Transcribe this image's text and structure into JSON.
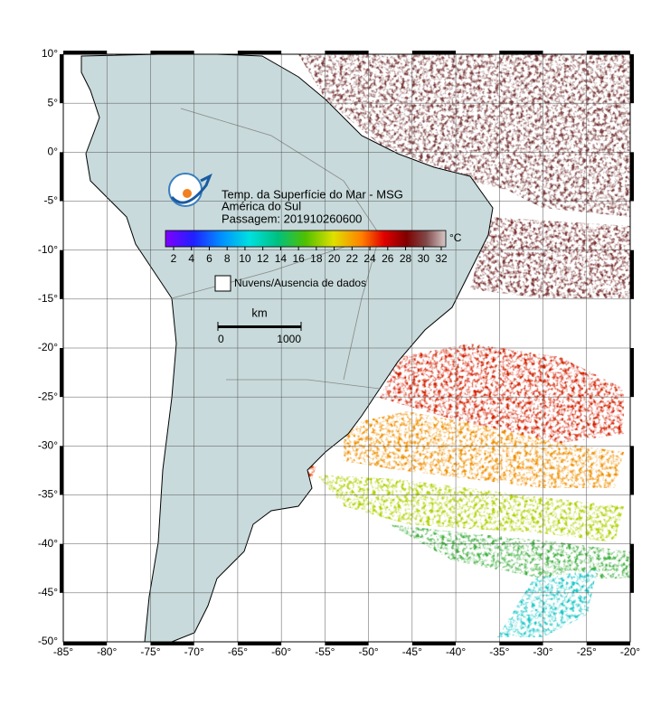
{
  "header": {
    "title": "Temp. da Superfície do Mar - MSG",
    "region": "América do Sul",
    "pass": "Passagem: 201910260600"
  },
  "colorbar": {
    "unit": "°C",
    "ticks": [
      2,
      4,
      6,
      8,
      10,
      12,
      14,
      16,
      18,
      20,
      22,
      24,
      26,
      28,
      30,
      32
    ]
  },
  "legend": {
    "clouds": "Nuvens/Ausencia de dados"
  },
  "scale": {
    "unit": "km",
    "ticks": [
      0,
      1000
    ]
  },
  "axes": {
    "lon_ticks": [
      {
        "value": -85,
        "label": "-85°"
      },
      {
        "value": -80,
        "label": "-80°"
      },
      {
        "value": -75,
        "label": "-75°"
      },
      {
        "value": -70,
        "label": "-70°"
      },
      {
        "value": -65,
        "label": "-65°"
      },
      {
        "value": -60,
        "label": "-60°"
      },
      {
        "value": -55,
        "label": "-55°"
      },
      {
        "value": -50,
        "label": "-50°"
      },
      {
        "value": -45,
        "label": "-45°"
      },
      {
        "value": -40,
        "label": "-40°"
      },
      {
        "value": -35,
        "label": "-35°"
      },
      {
        "value": -30,
        "label": "-30°"
      },
      {
        "value": -25,
        "label": "-25°"
      },
      {
        "value": -20,
        "label": "-20°"
      }
    ],
    "lat_ticks": [
      {
        "value": 10,
        "label": "10°"
      },
      {
        "value": 5,
        "label": "5°"
      },
      {
        "value": 0,
        "label": "0°"
      },
      {
        "value": -5,
        "label": "-5°"
      },
      {
        "value": -10,
        "label": "-10°"
      },
      {
        "value": -15,
        "label": "-15°"
      },
      {
        "value": -20,
        "label": "-20°"
      },
      {
        "value": -25,
        "label": "-25°"
      },
      {
        "value": -30,
        "label": "-30°"
      },
      {
        "value": -35,
        "label": "-35°"
      },
      {
        "value": -40,
        "label": "-40°"
      },
      {
        "value": -45,
        "label": "-45°"
      },
      {
        "value": -50,
        "label": "-50°"
      }
    ]
  }
}
